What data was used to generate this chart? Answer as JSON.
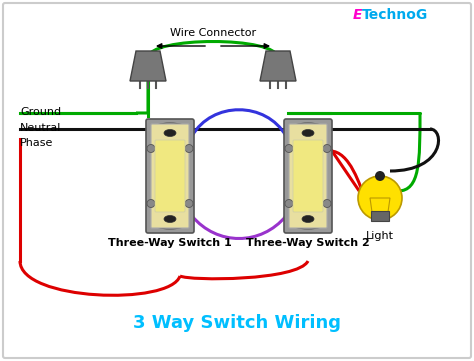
{
  "title": "3 Way Switch Wiring",
  "title_color": "#00BFFF",
  "title_fontsize": 13,
  "background_color": "#ffffff",
  "border_color": "#cccccc",
  "watermark_e_color": "#FF00CC",
  "watermark_rest_color": "#00AAEE",
  "labels": {
    "ground": "Ground",
    "neutral": "Neutral",
    "phase": "Phase",
    "wire_connector": "Wire Connector",
    "switch1": "Three-Way Switch 1",
    "switch2": "Three-Way Switch 2",
    "light": "Light"
  },
  "colors": {
    "green": "#00AA00",
    "black": "#111111",
    "red": "#DD0000",
    "blue": "#3333DD",
    "purple": "#9933CC",
    "gray": "#888888",
    "dark_gray": "#555555",
    "yellow": "#FFE000",
    "switch_body": "#E8DFA0",
    "switch_frame": "#999999"
  }
}
